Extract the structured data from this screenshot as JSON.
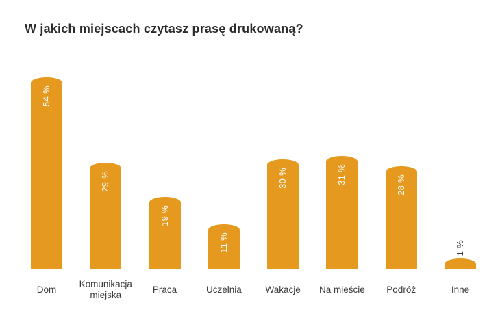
{
  "page": {
    "background_color": "#ffffff"
  },
  "colors": {
    "bar": "#e5991e",
    "title_text": "#2c2c2b",
    "category_label_text": "#3c3c3b",
    "value_label_inside": "#ffffff",
    "value_label_outside": "#3c3c3b"
  },
  "chart_data": {
    "type": "bar",
    "title": "W jakich miejscach czytasz prasę drukowaną?",
    "categories": [
      "Dom",
      "Komunikacja miejska",
      "Praca",
      "Uczelnia",
      "Wakacje",
      "Na mieście",
      "Podróż",
      "Inne"
    ],
    "values": [
      54,
      29,
      19,
      11,
      30,
      31,
      28,
      1
    ],
    "value_labels": [
      "54 %",
      "29 %",
      "19 %",
      "11 %",
      "30 %",
      "31 %",
      "28 %",
      "1 %"
    ],
    "unit": "%",
    "xlabel": "",
    "ylabel": "",
    "ylim": [
      0,
      60
    ],
    "grid": false,
    "legend": false,
    "axes_visible": false,
    "bar_color": "#e5991e",
    "value_label_rotation": -90
  }
}
